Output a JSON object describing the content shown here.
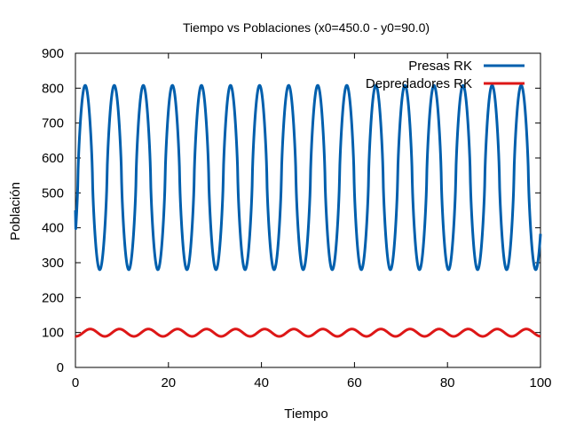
{
  "chart_data": {
    "type": "line",
    "title": "Tiempo vs Poblaciones (x0=450.0 - y0=90.0)",
    "xlabel": "Tiempo",
    "ylabel": "Población",
    "xlim": [
      0,
      100
    ],
    "ylim": [
      0,
      900
    ],
    "xticks": [
      0,
      20,
      40,
      60,
      80,
      100
    ],
    "yticks": [
      0,
      100,
      200,
      300,
      400,
      500,
      600,
      700,
      800,
      900
    ],
    "legend_position": "top-right",
    "grid": false,
    "series": [
      {
        "name": "Presas RK",
        "color": "#005fad",
        "start": 450,
        "period": 6.25,
        "min": 280,
        "max": 808,
        "first_peak_x": 2.1
      },
      {
        "name": "Depredadores RK",
        "color": "#dd1717",
        "start": 90,
        "period": 6.25,
        "min": 89,
        "max": 110,
        "first_peak_x": 3.2
      }
    ]
  }
}
